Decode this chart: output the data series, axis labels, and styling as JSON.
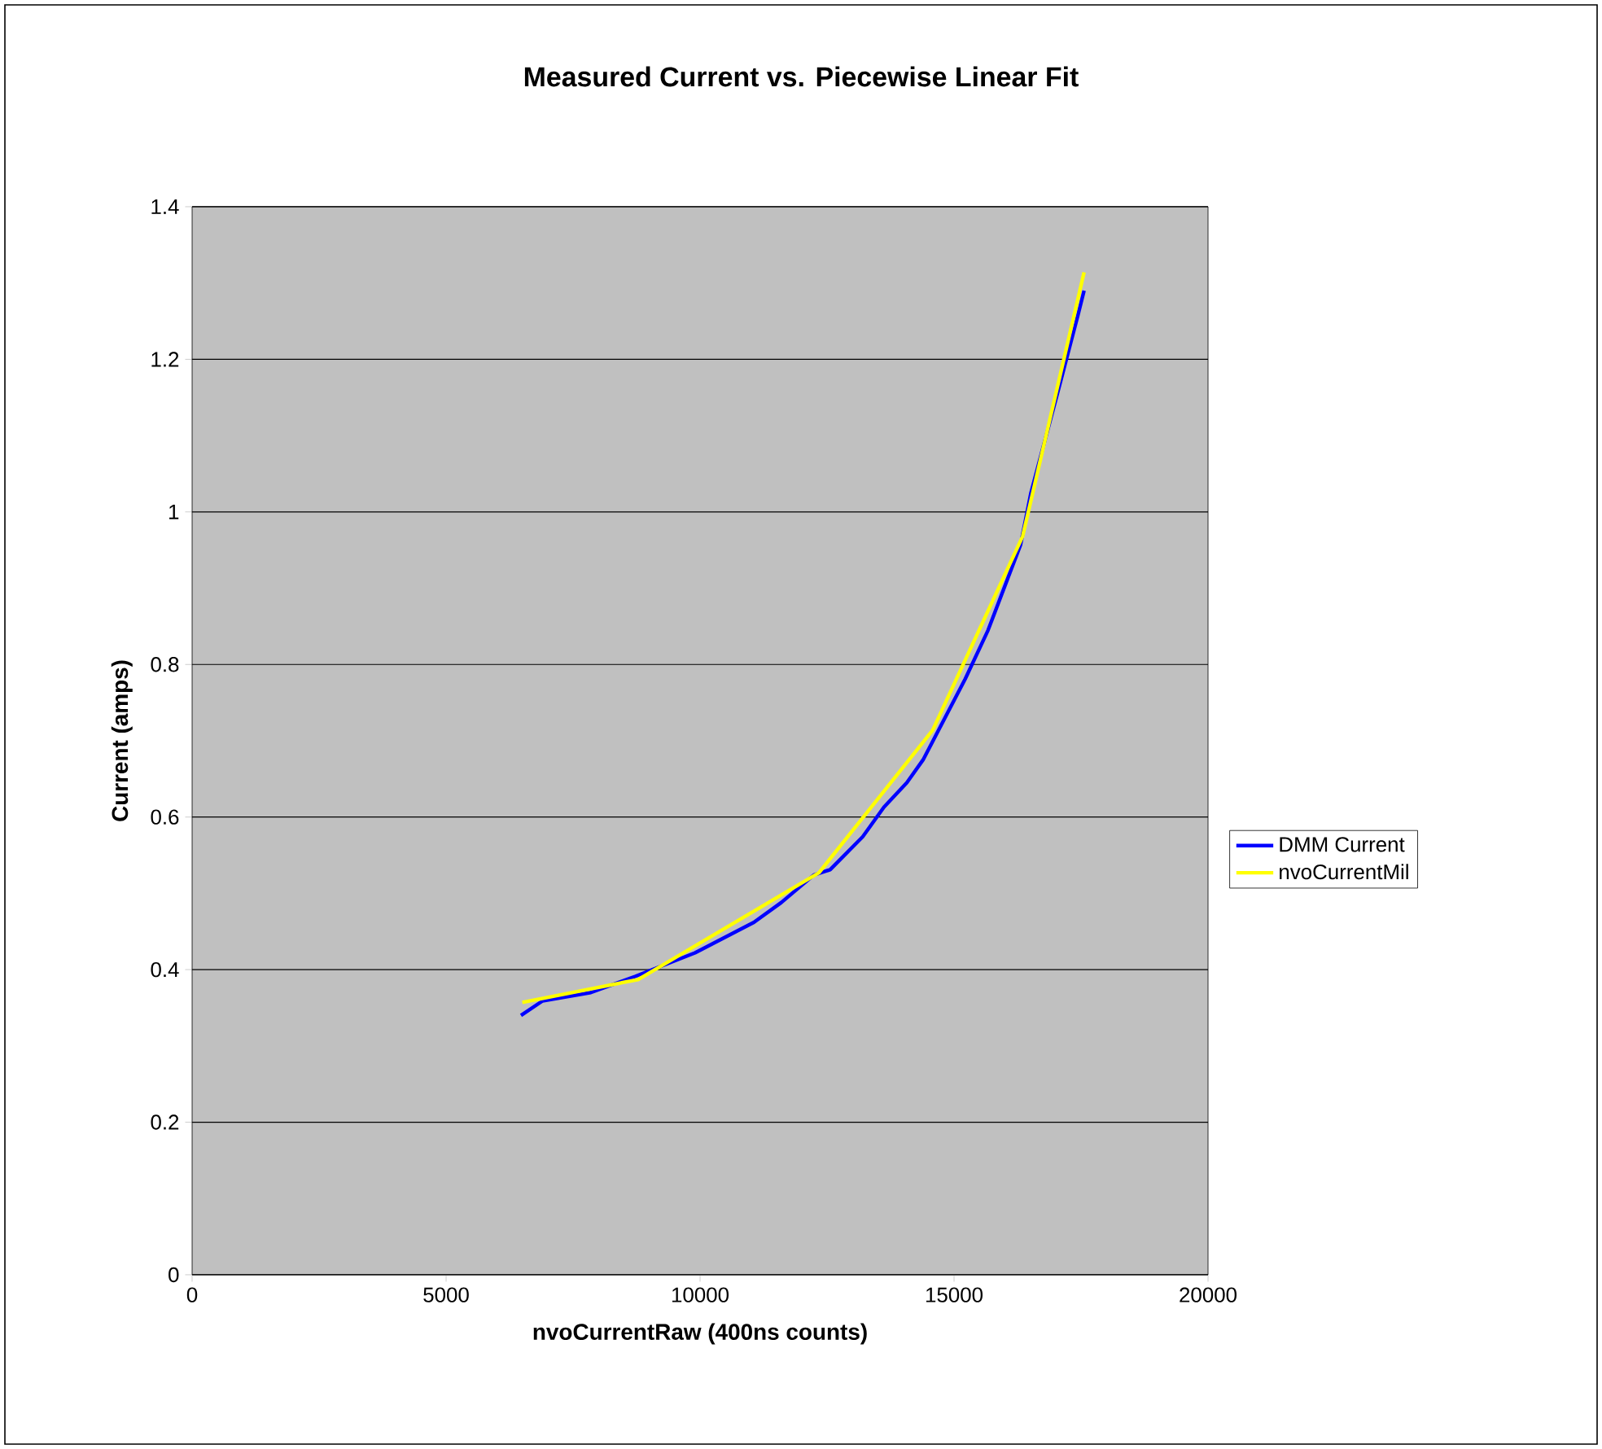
{
  "chart_data": {
    "type": "line",
    "title": "Measured Current vs. Piecewise Linear Fit",
    "xlabel": "nvoCurrentRaw (400ns counts)",
    "ylabel": "Current (amps)",
    "xlim": [
      0,
      20000
    ],
    "xticks": [
      0,
      5000,
      10000,
      15000,
      20000
    ],
    "ylim": [
      0,
      1.4
    ],
    "yticks": [
      0,
      0.2,
      0.4,
      0.6,
      0.8,
      1,
      1.2,
      1.4
    ],
    "grid": "y",
    "legend": "right",
    "marker": "none",
    "line_style": "solid",
    "series": [
      {
        "name": "DMM Current",
        "color": "#0000ff",
        "x": [
          6474,
          6900,
          7850,
          8720,
          9900,
          11060,
          11600,
          12240,
          12560,
          13200,
          13620,
          14070,
          14390,
          15220,
          15670,
          16310,
          16510,
          17050,
          17440,
          17560
        ],
        "values": [
          0.34,
          0.359,
          0.37,
          0.391,
          0.422,
          0.462,
          0.488,
          0.524,
          0.531,
          0.574,
          0.613,
          0.645,
          0.675,
          0.781,
          0.845,
          0.957,
          1.024,
          1.159,
          1.258,
          1.29
        ]
      },
      {
        "name": "nvoCurrentMil",
        "color": "#ffff00",
        "x": [
          6500,
          8780,
          12340,
          14580,
          16350,
          17560
        ],
        "values": [
          0.357,
          0.387,
          0.527,
          0.714,
          0.968,
          1.314
        ]
      }
    ]
  }
}
